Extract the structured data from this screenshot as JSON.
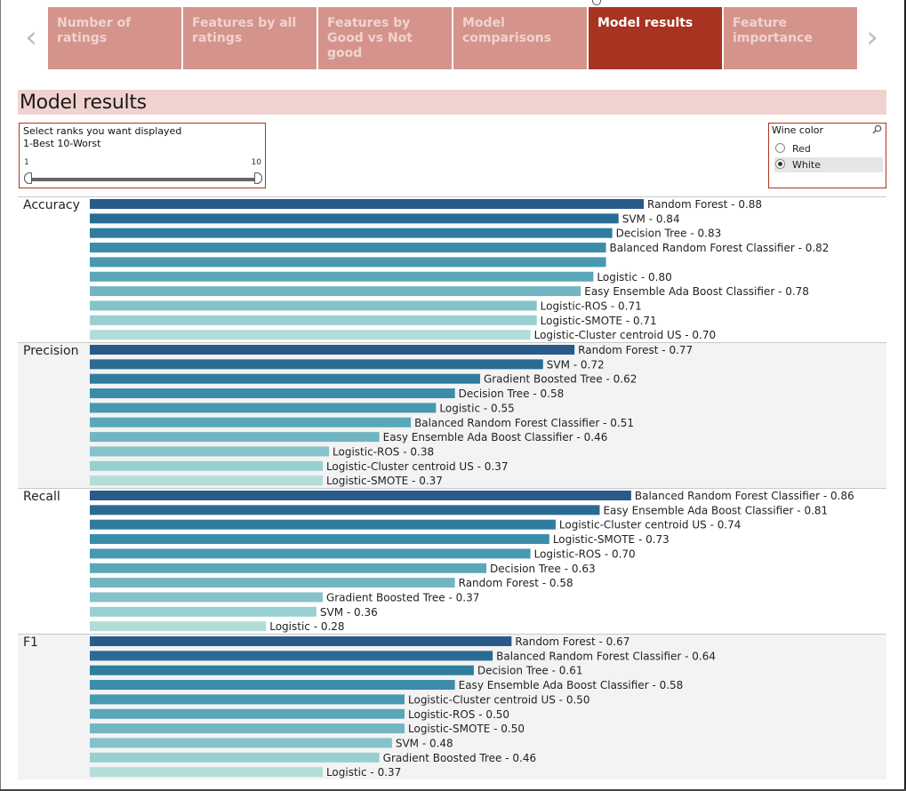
{
  "tabs": [
    {
      "label": "Number of ratings",
      "active": false
    },
    {
      "label": "Features by all ratings",
      "active": false
    },
    {
      "label": "Features by Good vs Not good",
      "active": false
    },
    {
      "label": "Model comparisons",
      "active": false
    },
    {
      "label": "Model results",
      "active": true
    },
    {
      "label": "Feature importance",
      "active": false
    }
  ],
  "nav": {
    "prev_icon": "chevron-left-icon",
    "next_icon": "chevron-right-icon",
    "prev_glyph": "‹",
    "next_glyph": "›"
  },
  "page_title": "Model results",
  "rank_slicer": {
    "line1": "Select ranks you want displayed",
    "line2": "1-Best 10-Worst",
    "min": "1",
    "max": "10",
    "selected_range": [
      1,
      10
    ]
  },
  "wine_filter": {
    "title": "Wine color",
    "search_icon": "search-icon",
    "options": [
      "Red",
      "White"
    ],
    "selected": "White"
  },
  "colors": {
    "accent": "#a73320",
    "tab_inactive": "#d4948c",
    "title_band": "#f0d3cf",
    "rank_palette": [
      "#2a5a8a",
      "#2a6b94",
      "#2f7c9f",
      "#3b8ca8",
      "#4699b1",
      "#59a7b9",
      "#72b5c2",
      "#85c2c9",
      "#98cfd0",
      "#b3ddd8"
    ]
  },
  "chart_data": [
    {
      "type": "bar",
      "title": "Accuracy",
      "orientation": "horizontal",
      "xlim": [
        0,
        1
      ],
      "bars": [
        {
          "label": "Random Forest - 0.88",
          "value": 0.88
        },
        {
          "label": "SVM - 0.84",
          "value": 0.84
        },
        {
          "label": "Decision Tree - 0.83",
          "value": 0.83
        },
        {
          "label": "Balanced Random Forest Classifier - 0.82",
          "value": 0.82
        },
        {
          "label": "",
          "value": 0.82
        },
        {
          "label": "Logistic - 0.80",
          "value": 0.8
        },
        {
          "label": "Easy Ensemble Ada Boost Classifier - 0.78",
          "value": 0.78
        },
        {
          "label": "Logistic-ROS - 0.71",
          "value": 0.71
        },
        {
          "label": "Logistic-SMOTE - 0.71",
          "value": 0.71
        },
        {
          "label": "Logistic-Cluster centroid US - 0.70",
          "value": 0.7
        }
      ]
    },
    {
      "type": "bar",
      "title": "Precision",
      "orientation": "horizontal",
      "xlim": [
        0,
        1
      ],
      "bars": [
        {
          "label": "Random Forest - 0.77",
          "value": 0.77
        },
        {
          "label": "SVM - 0.72",
          "value": 0.72
        },
        {
          "label": "Gradient Boosted Tree - 0.62",
          "value": 0.62
        },
        {
          "label": "Decision Tree - 0.58",
          "value": 0.58
        },
        {
          "label": "Logistic - 0.55",
          "value": 0.55
        },
        {
          "label": "Balanced Random Forest Classifier - 0.51",
          "value": 0.51
        },
        {
          "label": "Easy Ensemble Ada Boost Classifier - 0.46",
          "value": 0.46
        },
        {
          "label": "Logistic-ROS - 0.38",
          "value": 0.38
        },
        {
          "label": "Logistic-Cluster centroid US - 0.37",
          "value": 0.37
        },
        {
          "label": "Logistic-SMOTE - 0.37",
          "value": 0.37
        }
      ]
    },
    {
      "type": "bar",
      "title": "Recall",
      "orientation": "horizontal",
      "xlim": [
        0,
        1
      ],
      "bars": [
        {
          "label": "Balanced Random Forest Classifier - 0.86",
          "value": 0.86
        },
        {
          "label": "Easy Ensemble Ada Boost Classifier - 0.81",
          "value": 0.81
        },
        {
          "label": "Logistic-Cluster centroid US - 0.74",
          "value": 0.74
        },
        {
          "label": "Logistic-SMOTE - 0.73",
          "value": 0.73
        },
        {
          "label": "Logistic-ROS - 0.70",
          "value": 0.7
        },
        {
          "label": "Decision Tree - 0.63",
          "value": 0.63
        },
        {
          "label": "Random Forest - 0.58",
          "value": 0.58
        },
        {
          "label": "Gradient Boosted Tree - 0.37",
          "value": 0.37
        },
        {
          "label": "SVM - 0.36",
          "value": 0.36
        },
        {
          "label": "Logistic - 0.28",
          "value": 0.28
        }
      ]
    },
    {
      "type": "bar",
      "title": "F1",
      "orientation": "horizontal",
      "xlim": [
        0,
        1
      ],
      "bars": [
        {
          "label": "Random Forest - 0.67",
          "value": 0.67
        },
        {
          "label": "Balanced Random Forest Classifier - 0.64",
          "value": 0.64
        },
        {
          "label": "Decision Tree - 0.61",
          "value": 0.61
        },
        {
          "label": "Easy Ensemble Ada Boost Classifier - 0.58",
          "value": 0.58
        },
        {
          "label": "Logistic-Cluster centroid US - 0.50",
          "value": 0.5
        },
        {
          "label": "Logistic-ROS - 0.50",
          "value": 0.5
        },
        {
          "label": "Logistic-SMOTE - 0.50",
          "value": 0.5
        },
        {
          "label": "SVM - 0.48",
          "value": 0.48
        },
        {
          "label": "Gradient Boosted Tree - 0.46",
          "value": 0.46
        },
        {
          "label": "Logistic - 0.37",
          "value": 0.37
        }
      ]
    }
  ]
}
